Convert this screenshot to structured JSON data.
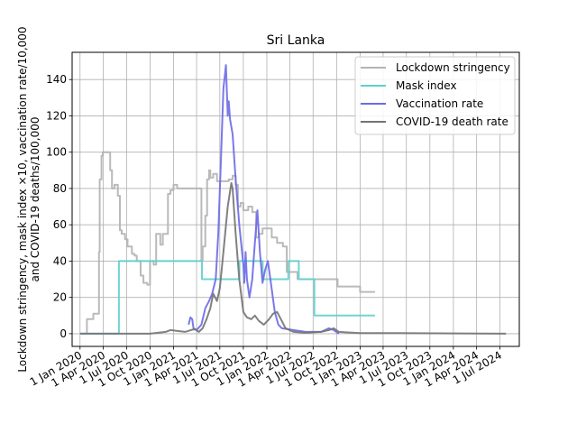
{
  "chart_data": {
    "type": "line",
    "title": "Sri Lanka",
    "ylabel_lines": [
      "Lockdown stringency, mask index ×10, vaccination rate/10,000",
      "and COVID-19 deaths/100,000"
    ],
    "xlim": [
      "2019-12-01",
      "2024-09-15"
    ],
    "ylim": [
      -7,
      155
    ],
    "yticks": [
      0,
      20,
      40,
      60,
      80,
      100,
      120,
      140
    ],
    "xticks": [
      {
        "date": "2020-01-01",
        "label": "1 Jan 2020"
      },
      {
        "date": "2020-04-01",
        "label": "1 Apr 2020"
      },
      {
        "date": "2020-07-01",
        "label": "1 Jul 2020"
      },
      {
        "date": "2020-10-01",
        "label": "1 Oct 2020"
      },
      {
        "date": "2021-01-01",
        "label": "1 Jan 2021"
      },
      {
        "date": "2021-04-01",
        "label": "1 Apr 2021"
      },
      {
        "date": "2021-07-01",
        "label": "1 Jul 2021"
      },
      {
        "date": "2021-10-01",
        "label": "1 Oct 2021"
      },
      {
        "date": "2022-01-01",
        "label": "1 Jan 2022"
      },
      {
        "date": "2022-04-01",
        "label": "1 Apr 2022"
      },
      {
        "date": "2022-07-01",
        "label": "1 Jul 2022"
      },
      {
        "date": "2022-10-01",
        "label": "1 Oct 2022"
      },
      {
        "date": "2023-01-01",
        "label": "1 Jan 2023"
      },
      {
        "date": "2023-04-01",
        "label": "1 Apr 2023"
      },
      {
        "date": "2023-07-01",
        "label": "1 Jul 2023"
      },
      {
        "date": "2023-10-01",
        "label": "1 Oct 2023"
      },
      {
        "date": "2024-01-01",
        "label": "1 Jan 2024"
      },
      {
        "date": "2024-04-01",
        "label": "1 Apr 2024"
      },
      {
        "date": "2024-07-01",
        "label": "1 Jul 2024"
      }
    ],
    "grid": true,
    "legend_position": "top-right",
    "series": [
      {
        "name": "Lockdown stringency",
        "color": "#b3b3b3",
        "step": true,
        "points": [
          [
            "2020-01-01",
            0
          ],
          [
            "2020-01-25",
            0
          ],
          [
            "2020-01-28",
            8
          ],
          [
            "2020-02-20",
            8
          ],
          [
            "2020-02-22",
            11
          ],
          [
            "2020-03-12",
            11
          ],
          [
            "2020-03-15",
            45
          ],
          [
            "2020-03-18",
            85
          ],
          [
            "2020-03-25",
            98
          ],
          [
            "2020-03-30",
            100
          ],
          [
            "2020-04-25",
            100
          ],
          [
            "2020-04-28",
            90
          ],
          [
            "2020-05-05",
            80
          ],
          [
            "2020-05-15",
            82
          ],
          [
            "2020-05-28",
            76
          ],
          [
            "2020-06-05",
            57
          ],
          [
            "2020-06-12",
            55
          ],
          [
            "2020-06-25",
            52
          ],
          [
            "2020-07-05",
            48
          ],
          [
            "2020-07-22",
            44
          ],
          [
            "2020-08-01",
            43
          ],
          [
            "2020-08-10",
            40
          ],
          [
            "2020-08-25",
            32
          ],
          [
            "2020-09-05",
            28
          ],
          [
            "2020-09-20",
            27
          ],
          [
            "2020-10-01",
            40
          ],
          [
            "2020-10-15",
            38
          ],
          [
            "2020-10-25",
            55
          ],
          [
            "2020-11-10",
            49
          ],
          [
            "2020-11-20",
            55
          ],
          [
            "2020-12-01",
            55
          ],
          [
            "2020-12-10",
            77
          ],
          [
            "2020-12-20",
            79
          ],
          [
            "2021-01-01",
            82
          ],
          [
            "2021-01-15",
            80
          ],
          [
            "2021-02-15",
            80
          ],
          [
            "2021-03-15",
            80
          ],
          [
            "2021-04-15",
            80
          ],
          [
            "2021-04-20",
            40
          ],
          [
            "2021-04-25",
            48
          ],
          [
            "2021-05-05",
            65
          ],
          [
            "2021-05-12",
            85
          ],
          [
            "2021-05-20",
            90
          ],
          [
            "2021-05-25",
            86
          ],
          [
            "2021-06-05",
            88
          ],
          [
            "2021-06-20",
            84
          ],
          [
            "2021-07-25",
            84
          ],
          [
            "2021-08-05",
            85
          ],
          [
            "2021-08-20",
            87
          ],
          [
            "2021-09-01",
            82
          ],
          [
            "2021-09-10",
            70
          ],
          [
            "2021-09-20",
            72
          ],
          [
            "2021-10-01",
            68
          ],
          [
            "2021-10-20",
            70
          ],
          [
            "2021-11-05",
            67
          ],
          [
            "2021-11-20",
            53
          ],
          [
            "2021-12-01",
            55
          ],
          [
            "2021-12-15",
            58
          ],
          [
            "2022-01-20",
            53
          ],
          [
            "2022-02-10",
            50
          ],
          [
            "2022-03-05",
            48
          ],
          [
            "2022-03-20",
            34
          ],
          [
            "2022-04-20",
            34
          ],
          [
            "2022-05-01",
            30
          ],
          [
            "2022-06-15",
            30
          ],
          [
            "2022-10-01",
            30
          ],
          [
            "2022-10-05",
            26
          ],
          [
            "2022-12-20",
            26
          ],
          [
            "2023-01-01",
            23
          ],
          [
            "2023-02-28",
            23
          ]
        ]
      },
      {
        "name": "Mask index",
        "color": "#5fd0cc",
        "step": true,
        "points": [
          [
            "2020-01-01",
            0
          ],
          [
            "2020-05-31",
            0
          ],
          [
            "2020-06-01",
            40
          ],
          [
            "2021-04-21",
            40
          ],
          [
            "2021-04-22",
            30
          ],
          [
            "2021-09-15",
            30
          ],
          [
            "2021-09-16",
            40
          ],
          [
            "2021-12-15",
            40
          ],
          [
            "2021-12-16",
            30
          ],
          [
            "2022-03-25",
            30
          ],
          [
            "2022-03-26",
            40
          ],
          [
            "2022-05-05",
            40
          ],
          [
            "2022-05-06",
            30
          ],
          [
            "2022-07-05",
            30
          ],
          [
            "2022-07-06",
            10
          ],
          [
            "2023-02-28",
            10
          ]
        ]
      },
      {
        "name": "Vaccination rate",
        "color": "#6a6ae8",
        "step": false,
        "points": [
          [
            "2021-03-01",
            5
          ],
          [
            "2021-03-08",
            9
          ],
          [
            "2021-03-15",
            8
          ],
          [
            "2021-03-20",
            3
          ],
          [
            "2021-04-01",
            2
          ],
          [
            "2021-04-20",
            5
          ],
          [
            "2021-05-05",
            14
          ],
          [
            "2021-05-20",
            18
          ],
          [
            "2021-06-01",
            22
          ],
          [
            "2021-06-15",
            30
          ],
          [
            "2021-06-25",
            55
          ],
          [
            "2021-07-05",
            95
          ],
          [
            "2021-07-15",
            135
          ],
          [
            "2021-07-25",
            148
          ],
          [
            "2021-08-01",
            120
          ],
          [
            "2021-08-05",
            128
          ],
          [
            "2021-08-10",
            118
          ],
          [
            "2021-08-20",
            110
          ],
          [
            "2021-09-01",
            85
          ],
          [
            "2021-09-15",
            60
          ],
          [
            "2021-10-01",
            38
          ],
          [
            "2021-10-05",
            28
          ],
          [
            "2021-10-10",
            45
          ],
          [
            "2021-10-15",
            30
          ],
          [
            "2021-10-25",
            20
          ],
          [
            "2021-11-05",
            30
          ],
          [
            "2021-11-15",
            50
          ],
          [
            "2021-11-25",
            68
          ],
          [
            "2021-12-05",
            45
          ],
          [
            "2021-12-15",
            28
          ],
          [
            "2021-12-25",
            35
          ],
          [
            "2022-01-05",
            40
          ],
          [
            "2022-01-15",
            30
          ],
          [
            "2022-02-01",
            12
          ],
          [
            "2022-02-15",
            5
          ],
          [
            "2022-03-01",
            3
          ],
          [
            "2022-04-15",
            2
          ],
          [
            "2022-06-01",
            1
          ],
          [
            "2022-08-01",
            1
          ],
          [
            "2022-09-01",
            3
          ],
          [
            "2022-09-20",
            2
          ],
          [
            "2022-10-10",
            0
          ]
        ]
      },
      {
        "name": "COVID-19 death rate",
        "color": "#737373",
        "step": false,
        "points": [
          [
            "2020-01-01",
            0
          ],
          [
            "2020-10-01",
            0
          ],
          [
            "2020-11-01",
            0.5
          ],
          [
            "2020-12-01",
            1
          ],
          [
            "2020-12-20",
            2
          ],
          [
            "2021-01-15",
            1.5
          ],
          [
            "2021-02-15",
            1
          ],
          [
            "2021-03-10",
            2
          ],
          [
            "2021-03-25",
            2.5
          ],
          [
            "2021-04-10",
            1
          ],
          [
            "2021-04-25",
            3
          ],
          [
            "2021-05-10",
            8
          ],
          [
            "2021-05-25",
            14
          ],
          [
            "2021-06-05",
            22
          ],
          [
            "2021-06-20",
            18
          ],
          [
            "2021-07-01",
            25
          ],
          [
            "2021-07-15",
            45
          ],
          [
            "2021-08-01",
            70
          ],
          [
            "2021-08-15",
            83
          ],
          [
            "2021-08-20",
            80
          ],
          [
            "2021-09-01",
            55
          ],
          [
            "2021-09-15",
            30
          ],
          [
            "2021-10-01",
            12
          ],
          [
            "2021-10-15",
            9
          ],
          [
            "2021-11-01",
            8
          ],
          [
            "2021-11-15",
            10
          ],
          [
            "2021-12-01",
            7
          ],
          [
            "2021-12-20",
            5
          ],
          [
            "2022-01-10",
            8
          ],
          [
            "2022-01-25",
            11
          ],
          [
            "2022-02-10",
            12
          ],
          [
            "2022-02-25",
            8
          ],
          [
            "2022-03-15",
            3
          ],
          [
            "2022-04-15",
            1
          ],
          [
            "2022-06-01",
            0.5
          ],
          [
            "2022-08-01",
            1
          ],
          [
            "2022-09-01",
            2
          ],
          [
            "2022-09-20",
            3
          ],
          [
            "2022-10-10",
            1
          ],
          [
            "2023-01-01",
            0.3
          ],
          [
            "2023-06-01",
            0.3
          ],
          [
            "2024-07-25",
            0
          ]
        ]
      }
    ]
  }
}
